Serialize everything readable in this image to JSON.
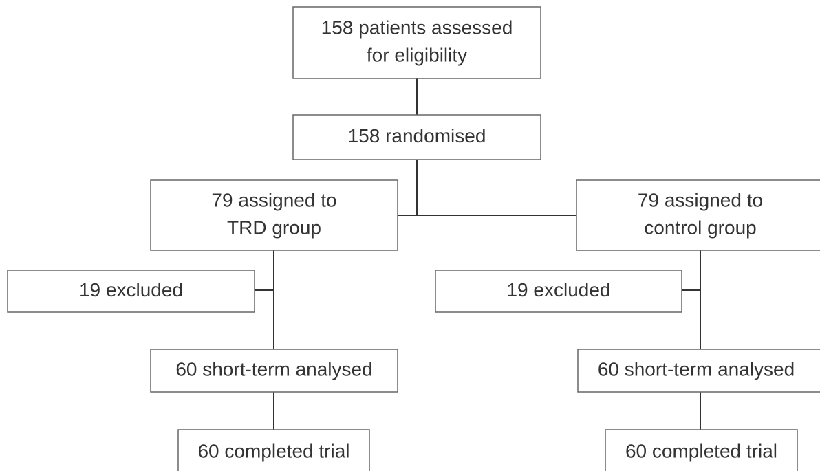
{
  "nodes": [
    {
      "lines": [
        "158 patients assessed",
        "for eligibility"
      ]
    },
    {
      "lines": [
        "158 randomised"
      ]
    },
    {
      "lines": [
        "79 assigned to",
        "TRD group"
      ]
    },
    {
      "lines": [
        "79 assigned to",
        "control group"
      ]
    },
    {
      "lines": [
        "19 excluded"
      ]
    },
    {
      "lines": [
        "19 excluded"
      ]
    },
    {
      "lines": [
        "60 short-term analysed"
      ]
    },
    {
      "lines": [
        "60 short-term analysed"
      ]
    },
    {
      "lines": [
        "60 completed trial"
      ]
    },
    {
      "lines": [
        "60 completed trial"
      ]
    }
  ]
}
